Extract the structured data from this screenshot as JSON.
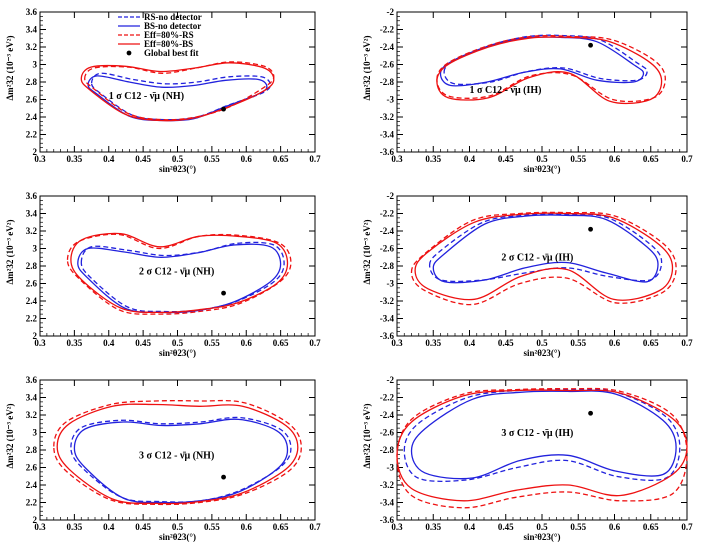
{
  "chart_data": {
    "type": "line",
    "legend": {
      "placement": "top-left",
      "entries": [
        {
          "label": "RS-no detector",
          "color": "#2222dd",
          "style": "dashed",
          "symbol": "line"
        },
        {
          "label": "BS-no detector",
          "color": "#2222dd",
          "style": "solid",
          "symbol": "line"
        },
        {
          "label": "Eff=80%-RS",
          "color": "#ee1111",
          "style": "dashed",
          "symbol": "line"
        },
        {
          "label": "Eff=80%-BS",
          "color": "#ee1111",
          "style": "solid",
          "symbol": "line"
        },
        {
          "label": "Global best fit",
          "color": "#000000",
          "style": "",
          "symbol": "dot"
        }
      ]
    },
    "best_fit": {
      "x": 0.567,
      "y_nh": 2.49,
      "y_ih": -2.38
    },
    "panels": [
      {
        "id": "p1",
        "ordering": "NH",
        "sigma": 1,
        "annotation": "1 σ  C12 - ν̄μ (NH)",
        "xlabel": "sin²θ23(°)",
        "ylabel": "Δm²32 (10⁻³ eV²)",
        "xlim": [
          0.3,
          0.7
        ],
        "ylim": [
          2.0,
          3.6
        ],
        "xticks": [
          "0.3",
          "0.35",
          "0.4",
          "0.45",
          "0.5",
          "0.55",
          "0.6",
          "0.65",
          "0.7"
        ],
        "yticks": [
          "2",
          "2.2",
          "2.4",
          "2.6",
          "2.8",
          "3",
          "3.2",
          "3.4",
          "3.6"
        ],
        "contours": [
          {
            "name": "RS-no detector",
            "color": "#2222dd",
            "style": "dashed",
            "xmin": 0.375,
            "xmax": 0.635,
            "top_y": [
              2.9,
              2.83,
              2.78,
              2.8,
              2.86,
              2.86
            ],
            "bottom_y": [
              2.67,
              2.42,
              2.37,
              2.4,
              2.54,
              2.67
            ]
          },
          {
            "name": "BS-no detector",
            "color": "#2222dd",
            "style": "solid",
            "xmin": 0.37,
            "xmax": 0.63,
            "top_y": [
              2.87,
              2.8,
              2.74,
              2.76,
              2.82,
              2.83
            ],
            "bottom_y": [
              2.66,
              2.41,
              2.36,
              2.38,
              2.52,
              2.66
            ]
          },
          {
            "name": "Eff=80%-RS",
            "color": "#ee1111",
            "style": "dashed",
            "xmin": 0.365,
            "xmax": 0.64,
            "top_y": [
              2.96,
              2.97,
              2.9,
              2.96,
              3.03,
              2.98
            ],
            "bottom_y": [
              2.72,
              2.44,
              2.37,
              2.4,
              2.52,
              2.74
            ]
          },
          {
            "name": "Eff=80%-BS",
            "color": "#ee1111",
            "style": "solid",
            "xmin": 0.36,
            "xmax": 0.64,
            "top_y": [
              2.97,
              2.98,
              2.92,
              2.96,
              3.02,
              2.96
            ],
            "bottom_y": [
              2.7,
              2.43,
              2.36,
              2.39,
              2.52,
              2.7
            ]
          }
        ]
      },
      {
        "id": "p2",
        "ordering": "IH",
        "sigma": 1,
        "annotation": "1 σ  C12 - ν̄μ (IH)",
        "xlabel": "sin²θ23(°)",
        "ylabel": "Δm²32 (10⁻³ eV²)",
        "xlim": [
          0.3,
          0.7
        ],
        "ylim": [
          -3.6,
          -2.0
        ],
        "xticks": [
          "0.3",
          "0.35",
          "0.4",
          "0.45",
          "0.5",
          "0.55",
          "0.6",
          "0.65",
          "0.7"
        ],
        "yticks": [
          "-2",
          "-2.2",
          "-2.4",
          "-2.6",
          "-2.8",
          "-3",
          "-3.2",
          "-3.4",
          "-3.6"
        ],
        "contours": [
          {
            "name": "RS-no detector",
            "color": "#2222dd",
            "style": "dashed",
            "xmin": 0.365,
            "xmax": 0.645,
            "top_y": [
              -2.55,
              -2.38,
              -2.28,
              -2.27,
              -2.32,
              -2.58
            ],
            "bottom_y": [
              -2.82,
              -2.8,
              -2.68,
              -2.64,
              -2.76,
              -2.78
            ]
          },
          {
            "name": "BS-no detector",
            "color": "#2222dd",
            "style": "solid",
            "xmin": 0.36,
            "xmax": 0.64,
            "top_y": [
              -2.57,
              -2.4,
              -2.3,
              -2.29,
              -2.34,
              -2.6
            ],
            "bottom_y": [
              -2.84,
              -2.8,
              -2.69,
              -2.65,
              -2.78,
              -2.8
            ]
          },
          {
            "name": "Eff=80%-RS",
            "color": "#ee1111",
            "style": "dashed",
            "xmin": 0.355,
            "xmax": 0.67,
            "top_y": [
              -2.58,
              -2.38,
              -2.28,
              -2.28,
              -2.32,
              -2.55
            ],
            "bottom_y": [
              -2.96,
              -2.96,
              -2.73,
              -2.72,
              -3.0,
              -2.98
            ]
          },
          {
            "name": "Eff=80%-BS",
            "color": "#ee1111",
            "style": "solid",
            "xmin": 0.355,
            "xmax": 0.665,
            "top_y": [
              -2.6,
              -2.4,
              -2.3,
              -2.29,
              -2.34,
              -2.58
            ],
            "bottom_y": [
              -2.98,
              -2.98,
              -2.75,
              -2.7,
              -3.02,
              -3.0
            ]
          }
        ]
      },
      {
        "id": "p3",
        "ordering": "NH",
        "sigma": 2,
        "annotation": "2 σ  C12 - ν̄μ (NH)",
        "xlabel": "sin²θ23(°)",
        "ylabel": "Δm²32 (10⁻³ eV²)",
        "xlim": [
          0.3,
          0.7
        ],
        "ylim": [
          2.0,
          3.6
        ],
        "xticks": [
          "0.3",
          "0.35",
          "0.4",
          "0.45",
          "0.5",
          "0.55",
          "0.6",
          "0.65",
          "0.7"
        ],
        "yticks": [
          "2",
          "2.2",
          "2.4",
          "2.6",
          "2.8",
          "3",
          "3.2",
          "3.4",
          "3.6"
        ],
        "contours": [
          {
            "name": "RS-no detector",
            "color": "#2222dd",
            "style": "dashed",
            "xmin": 0.36,
            "xmax": 0.655,
            "top_y": [
              3.02,
              2.98,
              2.92,
              2.96,
              3.06,
              3.04
            ],
            "bottom_y": [
              2.66,
              2.33,
              2.28,
              2.3,
              2.4,
              2.62
            ]
          },
          {
            "name": "BS-no detector",
            "color": "#2222dd",
            "style": "solid",
            "xmin": 0.355,
            "xmax": 0.65,
            "top_y": [
              3.0,
              2.96,
              2.9,
              2.95,
              3.04,
              3.02
            ],
            "bottom_y": [
              2.66,
              2.32,
              2.27,
              2.29,
              2.39,
              2.62
            ]
          },
          {
            "name": "Eff=80%-RS",
            "color": "#ee1111",
            "style": "dashed",
            "xmin": 0.34,
            "xmax": 0.665,
            "top_y": [
              3.08,
              3.16,
              3.0,
              3.14,
              3.15,
              3.06
            ],
            "bottom_y": [
              2.66,
              2.3,
              2.25,
              2.28,
              2.37,
              2.62
            ]
          },
          {
            "name": "Eff=80%-BS",
            "color": "#ee1111",
            "style": "solid",
            "xmin": 0.345,
            "xmax": 0.66,
            "top_y": [
              3.1,
              3.17,
              3.02,
              3.14,
              3.14,
              3.06
            ],
            "bottom_y": [
              2.64,
              2.32,
              2.27,
              2.3,
              2.38,
              2.6
            ]
          }
        ]
      },
      {
        "id": "p4",
        "ordering": "IH",
        "sigma": 2,
        "annotation": "2 σ  C12 - ν̄μ (IH)",
        "xlabel": "sin²θ23(°)",
        "ylabel": "Δm²32 (10⁻³ eV²)",
        "xlim": [
          0.3,
          0.7
        ],
        "ylim": [
          -3.6,
          -2.0
        ],
        "xticks": [
          "0.3",
          "0.35",
          "0.4",
          "0.45",
          "0.5",
          "0.55",
          "0.6",
          "0.65",
          "0.7"
        ],
        "yticks": [
          "-2",
          "-2.2",
          "-2.4",
          "-2.6",
          "-2.8",
          "-3",
          "-3.2",
          "-3.4",
          "-3.6"
        ],
        "contours": [
          {
            "name": "RS-no detector",
            "color": "#2222dd",
            "style": "dashed",
            "xmin": 0.345,
            "xmax": 0.665,
            "top_y": [
              -2.62,
              -2.3,
              -2.22,
              -2.21,
              -2.25,
              -2.55
            ],
            "bottom_y": [
              -2.96,
              -2.96,
              -2.88,
              -2.82,
              -2.92,
              -2.96
            ]
          },
          {
            "name": "BS-no detector",
            "color": "#2222dd",
            "style": "solid",
            "xmin": 0.35,
            "xmax": 0.66,
            "top_y": [
              -2.66,
              -2.32,
              -2.23,
              -2.22,
              -2.27,
              -2.58
            ],
            "bottom_y": [
              -2.98,
              -2.96,
              -2.82,
              -2.76,
              -2.88,
              -2.98
            ]
          },
          {
            "name": "Eff=80%-RS",
            "color": "#ee1111",
            "style": "dashed",
            "xmin": 0.32,
            "xmax": 0.685,
            "top_y": [
              -2.66,
              -2.28,
              -2.2,
              -2.19,
              -2.23,
              -2.54
            ],
            "bottom_y": [
              -3.08,
              -3.24,
              -3.0,
              -2.94,
              -3.22,
              -3.1
            ]
          },
          {
            "name": "Eff=80%-BS",
            "color": "#ee1111",
            "style": "solid",
            "xmin": 0.325,
            "xmax": 0.68,
            "top_y": [
              -2.64,
              -2.3,
              -2.21,
              -2.2,
              -2.25,
              -2.56
            ],
            "bottom_y": [
              -3.06,
              -3.18,
              -2.92,
              -2.84,
              -3.18,
              -3.08
            ]
          }
        ]
      },
      {
        "id": "p5",
        "ordering": "NH",
        "sigma": 3,
        "annotation": "3 σ  C12 - ν̄μ (NH)",
        "xlabel": "sin²θ23(°)",
        "ylabel": "Δm²32 (10⁻³ eV²)",
        "xlim": [
          0.3,
          0.7
        ],
        "ylim": [
          2.0,
          3.6
        ],
        "xticks": [
          "0.3",
          "0.35",
          "0.4",
          "0.45",
          "0.5",
          "0.55",
          "0.6",
          "0.65",
          "0.7"
        ],
        "yticks": [
          "2",
          "2.2",
          "2.4",
          "2.6",
          "2.8",
          "3",
          "3.2",
          "3.4",
          "3.6"
        ],
        "contours": [
          {
            "name": "RS-no detector",
            "color": "#2222dd",
            "style": "dashed",
            "xmin": 0.345,
            "xmax": 0.665,
            "top_y": [
              3.06,
              3.14,
              3.1,
              3.12,
              3.17,
              3.04
            ],
            "bottom_y": [
              2.6,
              2.26,
              2.21,
              2.22,
              2.34,
              2.6
            ]
          },
          {
            "name": "BS-no detector",
            "color": "#2222dd",
            "style": "solid",
            "xmin": 0.35,
            "xmax": 0.66,
            "top_y": [
              3.04,
              3.12,
              3.08,
              3.1,
              3.15,
              3.02
            ],
            "bottom_y": [
              2.6,
              2.25,
              2.2,
              2.22,
              2.32,
              2.58
            ]
          },
          {
            "name": "Eff=80%-RS",
            "color": "#ee1111",
            "style": "dashed",
            "xmin": 0.32,
            "xmax": 0.68,
            "top_y": [
              3.12,
              3.32,
              3.36,
              3.36,
              3.34,
              3.1
            ],
            "bottom_y": [
              2.56,
              2.23,
              2.18,
              2.2,
              2.3,
              2.56
            ]
          },
          {
            "name": "Eff=80%-BS",
            "color": "#ee1111",
            "style": "solid",
            "xmin": 0.325,
            "xmax": 0.675,
            "top_y": [
              3.1,
              3.3,
              3.32,
              3.3,
              3.3,
              3.08
            ],
            "bottom_y": [
              2.58,
              2.24,
              2.19,
              2.21,
              2.31,
              2.58
            ]
          }
        ]
      },
      {
        "id": "p6",
        "ordering": "IH",
        "sigma": 3,
        "annotation": "3 σ  C12 - ν̄μ (IH)",
        "xlabel": "sin²θ23(°)",
        "ylabel": "Δm²32 (10⁻³ eV²)",
        "xlim": [
          0.3,
          0.7
        ],
        "ylim": [
          -3.6,
          -2.0
        ],
        "xticks": [
          "0.3",
          "0.35",
          "0.4",
          "0.45",
          "0.5",
          "0.55",
          "0.6",
          "0.65",
          "0.7"
        ],
        "yticks": [
          "-2",
          "-2.2",
          "-2.4",
          "-2.6",
          "-2.8",
          "-3",
          "-3.2",
          "-3.4",
          "-3.6"
        ],
        "contours": [
          {
            "name": "RS-no detector",
            "color": "#2222dd",
            "style": "dashed",
            "xmin": 0.31,
            "xmax": 0.69,
            "top_y": [
              -2.5,
              -2.2,
              -2.12,
              -2.11,
              -2.14,
              -2.42
            ],
            "bottom_y": [
              -3.12,
              -3.14,
              -3.0,
              -2.92,
              -3.1,
              -3.12
            ]
          },
          {
            "name": "BS-no detector",
            "color": "#2222dd",
            "style": "solid",
            "xmin": 0.32,
            "xmax": 0.685,
            "top_y": [
              -2.56,
              -2.22,
              -2.14,
              -2.13,
              -2.16,
              -2.46
            ],
            "bottom_y": [
              -3.06,
              -3.12,
              -2.92,
              -2.86,
              -3.04,
              -3.08
            ]
          },
          {
            "name": "Eff=80%-RS",
            "color": "#ee1111",
            "style": "dashed",
            "xmin": 0.3,
            "xmax": 0.7,
            "top_y": [
              -2.45,
              -2.16,
              -2.11,
              -2.1,
              -2.13,
              -2.4
            ],
            "bottom_y": [
              -3.32,
              -3.46,
              -3.34,
              -3.28,
              -3.38,
              -3.3
            ]
          },
          {
            "name": "Eff=80%-BS",
            "color": "#ee1111",
            "style": "solid",
            "xmin": 0.3,
            "xmax": 0.7,
            "top_y": [
              -2.48,
              -2.18,
              -2.12,
              -2.12,
              -2.15,
              -2.44
            ],
            "bottom_y": [
              -3.24,
              -3.38,
              -3.26,
              -3.2,
              -3.32,
              -3.08
            ]
          }
        ]
      }
    ]
  }
}
